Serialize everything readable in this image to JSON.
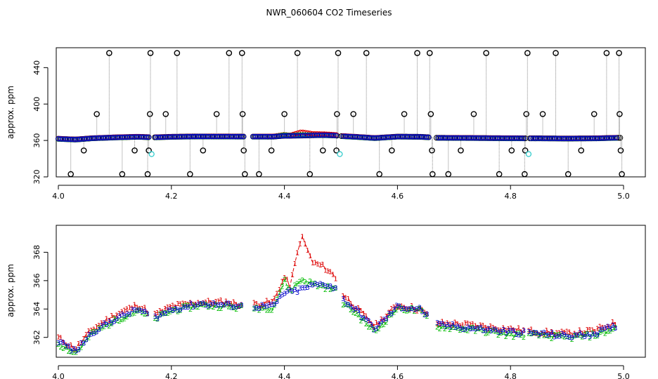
{
  "figure_title": "NWR_060604  CO2 Timeseries",
  "chart_data": [
    {
      "type": "scatter",
      "panel": "top",
      "title": "NWR_060604  CO2 Timeseries",
      "xlabel": "",
      "ylabel": "approx. ppm",
      "xlim": [
        4.0,
        5.0
      ],
      "ylim": [
        320,
        458
      ],
      "xticks": [
        4.0,
        4.2,
        4.4,
        4.6,
        4.8,
        5.0
      ],
      "xtick_labels": [
        "4.0",
        "4.2",
        "4.4",
        "4.6",
        "4.8",
        "5.0"
      ],
      "yticks": [
        320,
        360,
        400,
        440
      ],
      "ytick_labels": [
        "320",
        "360",
        "400",
        "440"
      ],
      "grid": false,
      "colors": {
        "raw_black": "#000000",
        "ref_gray": "#888888",
        "red": "#dd0000",
        "green": "#00bb00",
        "blue": "#0000cc",
        "cyan": "#33cccc"
      },
      "reference_cycle_points": [
        {
          "x": 4.022,
          "y": 323
        },
        {
          "x": 4.045,
          "y": 349
        },
        {
          "x": 4.068,
          "y": 389
        },
        {
          "x": 4.09,
          "y": 456
        },
        {
          "x": 4.113,
          "y": 323
        },
        {
          "x": 4.135,
          "y": 349
        },
        {
          "x": 4.158,
          "y": 323
        },
        {
          "x": 4.16,
          "y": 349
        },
        {
          "x": 4.162,
          "y": 389
        },
        {
          "x": 4.163,
          "y": 456
        },
        {
          "x": 4.19,
          "y": 389
        },
        {
          "x": 4.21,
          "y": 456
        },
        {
          "x": 4.233,
          "y": 323
        },
        {
          "x": 4.256,
          "y": 349
        },
        {
          "x": 4.28,
          "y": 389
        },
        {
          "x": 4.302,
          "y": 456
        },
        {
          "x": 4.325,
          "y": 456
        },
        {
          "x": 4.326,
          "y": 389
        },
        {
          "x": 4.328,
          "y": 349
        },
        {
          "x": 4.33,
          "y": 323
        },
        {
          "x": 4.355,
          "y": 323
        },
        {
          "x": 4.377,
          "y": 349
        },
        {
          "x": 4.4,
          "y": 389
        },
        {
          "x": 4.423,
          "y": 456
        },
        {
          "x": 4.445,
          "y": 323
        },
        {
          "x": 4.468,
          "y": 349
        },
        {
          "x": 4.492,
          "y": 349
        },
        {
          "x": 4.493,
          "y": 389
        },
        {
          "x": 4.495,
          "y": 456
        },
        {
          "x": 4.522,
          "y": 389
        },
        {
          "x": 4.545,
          "y": 456
        },
        {
          "x": 4.568,
          "y": 323
        },
        {
          "x": 4.59,
          "y": 349
        },
        {
          "x": 4.612,
          "y": 389
        },
        {
          "x": 4.635,
          "y": 456
        },
        {
          "x": 4.657,
          "y": 456
        },
        {
          "x": 4.659,
          "y": 389
        },
        {
          "x": 4.661,
          "y": 349
        },
        {
          "x": 4.662,
          "y": 323
        },
        {
          "x": 4.69,
          "y": 323
        },
        {
          "x": 4.712,
          "y": 349
        },
        {
          "x": 4.735,
          "y": 389
        },
        {
          "x": 4.757,
          "y": 456
        },
        {
          "x": 4.78,
          "y": 323
        },
        {
          "x": 4.802,
          "y": 349
        },
        {
          "x": 4.825,
          "y": 323
        },
        {
          "x": 4.826,
          "y": 349
        },
        {
          "x": 4.828,
          "y": 389
        },
        {
          "x": 4.83,
          "y": 456
        },
        {
          "x": 4.857,
          "y": 389
        },
        {
          "x": 4.88,
          "y": 456
        },
        {
          "x": 4.902,
          "y": 323
        },
        {
          "x": 4.925,
          "y": 349
        },
        {
          "x": 4.948,
          "y": 389
        },
        {
          "x": 4.97,
          "y": 456
        },
        {
          "x": 4.992,
          "y": 456
        },
        {
          "x": 4.993,
          "y": 389
        },
        {
          "x": 4.995,
          "y": 349
        },
        {
          "x": 4.997,
          "y": 323
        }
      ],
      "cyan_points": [
        {
          "x": 4.165,
          "y": 345
        },
        {
          "x": 4.498,
          "y": 345
        },
        {
          "x": 4.832,
          "y": 345
        }
      ]
    },
    {
      "type": "line",
      "panel": "bottom",
      "xlabel": "",
      "ylabel": "approx. ppm",
      "xlim": [
        4.0,
        5.0
      ],
      "ylim": [
        360.6,
        369.9
      ],
      "xticks": [
        4.0,
        4.2,
        4.4,
        4.6,
        4.8,
        5.0
      ],
      "xtick_labels": [
        "4.0",
        "4.2",
        "4.4",
        "4.6",
        "4.8",
        "5.0"
      ],
      "yticks": [
        362,
        364,
        366,
        368
      ],
      "ytick_labels": [
        "362",
        "364",
        "366",
        "368"
      ],
      "grid": false,
      "gaps": [
        [
          4.16,
          4.17
        ],
        [
          4.328,
          4.343
        ],
        [
          4.493,
          4.5
        ],
        [
          4.657,
          4.668
        ],
        [
          4.826,
          4.832
        ]
      ],
      "series": [
        {
          "name": "1",
          "color": "#dd0000",
          "x": [
            4.0,
            4.03,
            4.06,
            4.1,
            4.14,
            4.17,
            4.2,
            4.25,
            4.3,
            4.33,
            4.38,
            4.4,
            4.41,
            4.43,
            4.45,
            4.47,
            4.49,
            4.5,
            4.53,
            4.56,
            4.6,
            4.64,
            4.67,
            4.7,
            4.75,
            4.8,
            4.85,
            4.9,
            4.95,
            4.99
          ],
          "values": [
            362.0,
            361.2,
            362.6,
            363.6,
            364.3,
            363.6,
            364.2,
            364.5,
            364.5,
            364.3,
            364.5,
            366.3,
            365.6,
            369.2,
            367.3,
            367.0,
            366.3,
            365.2,
            364.0,
            362.8,
            364.3,
            364.0,
            363.0,
            363.0,
            362.8,
            362.6,
            362.4,
            362.3,
            362.5,
            363.1
          ]
        },
        {
          "name": "2",
          "color": "#00bb00",
          "x": [
            4.0,
            4.03,
            4.06,
            4.1,
            4.14,
            4.17,
            4.2,
            4.25,
            4.3,
            4.33,
            4.38,
            4.4,
            4.41,
            4.43,
            4.45,
            4.47,
            4.49,
            4.5,
            4.53,
            4.56,
            4.6,
            4.64,
            4.67,
            4.7,
            4.75,
            4.8,
            4.85,
            4.9,
            4.95,
            4.99
          ],
          "values": [
            361.6,
            360.9,
            362.3,
            363.2,
            363.9,
            363.3,
            363.9,
            364.3,
            364.2,
            364.1,
            364.1,
            366.0,
            365.3,
            366.1,
            365.8,
            365.6,
            365.4,
            364.6,
            363.6,
            362.4,
            364.1,
            363.9,
            362.8,
            362.7,
            362.5,
            362.2,
            362.2,
            362.0,
            362.2,
            362.7
          ]
        },
        {
          "name": "3",
          "color": "#0000cc",
          "x": [
            4.0,
            4.03,
            4.06,
            4.1,
            4.14,
            4.17,
            4.2,
            4.25,
            4.3,
            4.33,
            4.38,
            4.4,
            4.41,
            4.43,
            4.45,
            4.47,
            4.49,
            4.5,
            4.53,
            4.56,
            4.6,
            4.64,
            4.67,
            4.7,
            4.75,
            4.8,
            4.85,
            4.9,
            4.95,
            4.99
          ],
          "values": [
            361.8,
            361.0,
            362.4,
            363.3,
            364.0,
            363.4,
            364.0,
            364.4,
            364.3,
            364.2,
            364.2,
            365.2,
            365.2,
            365.4,
            365.7,
            365.8,
            365.5,
            364.8,
            363.8,
            362.6,
            364.2,
            364.0,
            362.9,
            362.8,
            362.6,
            362.4,
            362.3,
            362.1,
            362.3,
            362.9
          ]
        }
      ]
    }
  ]
}
